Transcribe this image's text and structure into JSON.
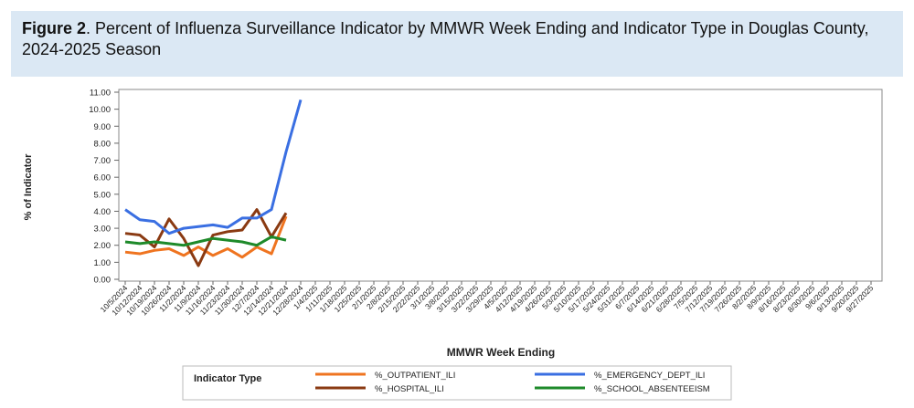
{
  "header": {
    "figure": "Figure 2",
    "title": ". Percent of Influenza Surveillance Indicator by MMWR Week Ending and Indicator Type in Douglas County, 2024-2025 Season"
  },
  "chart_data": {
    "type": "line",
    "categories": [
      "10/5/2024",
      "10/12/2024",
      "10/19/2024",
      "10/26/2024",
      "11/2/2024",
      "11/9/2024",
      "11/16/2024",
      "11/23/2024",
      "11/30/2024",
      "12/7/2024",
      "12/14/2024",
      "12/21/2024",
      "12/28/2024",
      "1/4/2025",
      "1/11/2025",
      "1/18/2025",
      "1/25/2025",
      "2/1/2025",
      "2/8/2025",
      "2/15/2025",
      "2/22/2025",
      "3/1/2025",
      "3/8/2025",
      "3/15/2025",
      "3/22/2025",
      "3/29/2025",
      "4/5/2025",
      "4/12/2025",
      "4/19/2025",
      "4/26/2025",
      "5/3/2025",
      "5/10/2025",
      "5/17/2025",
      "5/24/2025",
      "5/31/2025",
      "6/7/2025",
      "6/14/2025",
      "6/21/2025",
      "6/28/2025",
      "7/5/2025",
      "7/12/2025",
      "7/19/2025",
      "7/26/2025",
      "8/2/2025",
      "8/9/2025",
      "8/16/2025",
      "8/23/2025",
      "8/30/2025",
      "9/6/2025",
      "9/13/2025",
      "9/20/2025",
      "9/27/2025"
    ],
    "series": [
      {
        "name": "%_OUTPATIENT_ILI",
        "color": "#ef7420",
        "values": [
          1.6,
          1.5,
          1.7,
          1.8,
          1.4,
          1.9,
          1.4,
          1.8,
          1.3,
          1.9,
          1.5,
          3.7,
          null,
          null,
          null,
          null,
          null,
          null,
          null,
          null,
          null,
          null,
          null,
          null,
          null,
          null,
          null,
          null,
          null,
          null,
          null,
          null,
          null,
          null,
          null,
          null,
          null,
          null,
          null,
          null,
          null,
          null,
          null,
          null,
          null,
          null,
          null,
          null,
          null,
          null,
          null,
          null
        ]
      },
      {
        "name": "%_HOSPITAL_ILI",
        "color": "#8a3a12",
        "values": [
          2.7,
          2.6,
          1.9,
          3.55,
          2.4,
          0.8,
          2.6,
          2.8,
          2.9,
          4.1,
          2.5,
          3.9,
          null,
          null,
          null,
          null,
          null,
          null,
          null,
          null,
          null,
          null,
          null,
          null,
          null,
          null,
          null,
          null,
          null,
          null,
          null,
          null,
          null,
          null,
          null,
          null,
          null,
          null,
          null,
          null,
          null,
          null,
          null,
          null,
          null,
          null,
          null,
          null,
          null,
          null,
          null,
          null
        ]
      },
      {
        "name": "%_EMERGENCY_DEPT_ILI",
        "color": "#3a6fe2",
        "values": [
          4.1,
          3.5,
          3.4,
          2.7,
          3.0,
          3.1,
          3.2,
          3.05,
          3.6,
          3.6,
          4.1,
          7.5,
          10.55,
          null,
          null,
          null,
          null,
          null,
          null,
          null,
          null,
          null,
          null,
          null,
          null,
          null,
          null,
          null,
          null,
          null,
          null,
          null,
          null,
          null,
          null,
          null,
          null,
          null,
          null,
          null,
          null,
          null,
          null,
          null,
          null,
          null,
          null,
          null,
          null,
          null,
          null,
          null
        ]
      },
      {
        "name": "%_SCHOOL_ABSENTEEISM",
        "color": "#1e8a2a",
        "values": [
          2.2,
          2.1,
          2.2,
          2.1,
          2.0,
          2.2,
          2.4,
          2.3,
          2.2,
          2.0,
          2.5,
          2.3,
          null,
          null,
          null,
          null,
          null,
          null,
          null,
          null,
          null,
          null,
          null,
          null,
          null,
          null,
          null,
          null,
          null,
          null,
          null,
          null,
          null,
          null,
          null,
          null,
          null,
          null,
          null,
          null,
          null,
          null,
          null,
          null,
          null,
          null,
          null,
          null,
          null,
          null,
          null,
          null
        ]
      }
    ],
    "ylim": [
      0,
      11
    ],
    "yticks": [
      {
        "value": 0,
        "label": "0.00"
      },
      {
        "value": 1,
        "label": "1.00"
      },
      {
        "value": 2,
        "label": "2.00"
      },
      {
        "value": 3,
        "label": "3.00"
      },
      {
        "value": 4,
        "label": "4.00"
      },
      {
        "value": 5,
        "label": "5.00"
      },
      {
        "value": 6,
        "label": "6.00"
      },
      {
        "value": 7,
        "label": "7.00"
      },
      {
        "value": 8,
        "label": "8.00"
      },
      {
        "value": 9,
        "label": "9.00"
      },
      {
        "value": 10,
        "label": "10.00"
      },
      {
        "value": 11,
        "label": "11.00"
      }
    ],
    "xlabel": "MMWR Week Ending",
    "ylabel": "% of Indicator",
    "legend_title": "Indicator Type"
  }
}
